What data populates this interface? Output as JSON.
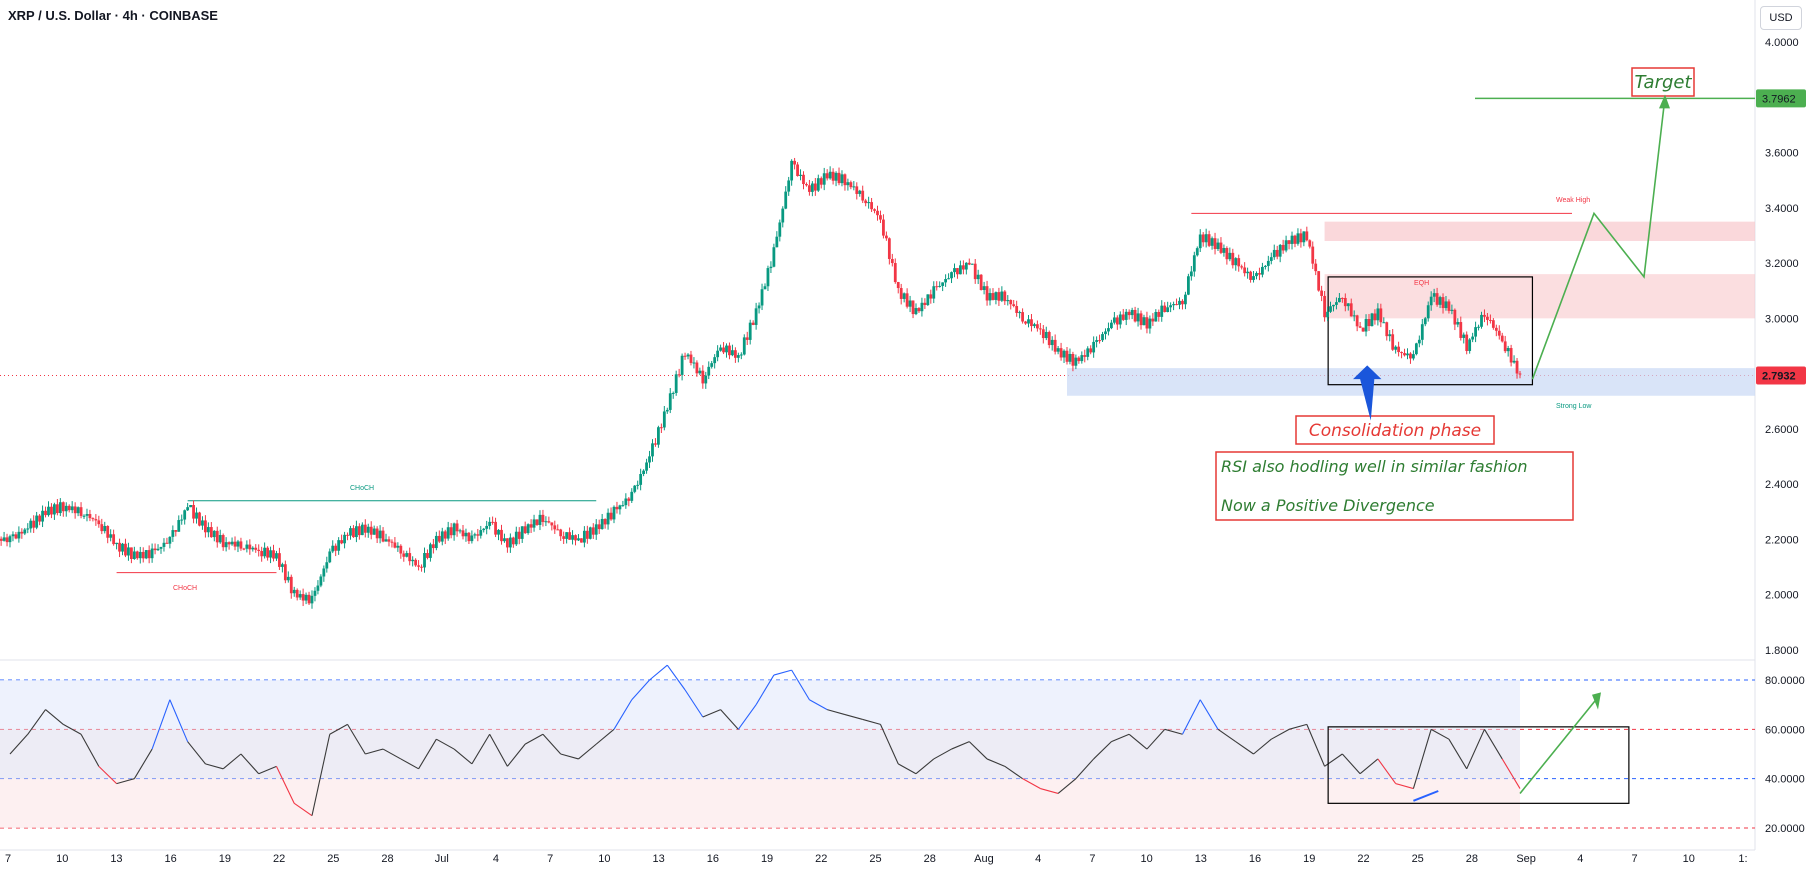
{
  "header": {
    "title": "XRP / U.S. Dollar · 4h · COINBASE"
  },
  "currency_button": "USD",
  "colors": {
    "up": "#089981",
    "down": "#f23645",
    "rsi_neutral": "#3a3a3a",
    "rsi_up": "#2962ff",
    "annotation_green": "#4caf50",
    "annotation_red": "#e53935"
  },
  "price_axis": {
    "ticks": [
      "4.0000",
      "3.8000",
      "3.6000",
      "3.4000",
      "3.2000",
      "3.0000",
      "2.8000",
      "2.6000",
      "2.4000",
      "2.2000",
      "2.0000",
      "1.8000"
    ],
    "current_price": "2.7932",
    "target_price": "3.7962"
  },
  "rsi_axis": {
    "ticks": [
      "80.0000",
      "60.0000",
      "40.0000",
      "20.0000"
    ]
  },
  "time_axis": {
    "labels": [
      "7",
      "10",
      "13",
      "16",
      "19",
      "22",
      "25",
      "28",
      "Jul",
      "4",
      "7",
      "10",
      "13",
      "16",
      "19",
      "22",
      "25",
      "28",
      "Aug",
      "4",
      "7",
      "10",
      "13",
      "16",
      "19",
      "22",
      "25",
      "28",
      "Sep",
      "4",
      "7",
      "10",
      "1:"
    ]
  },
  "annotations": {
    "target": "Target",
    "consolidation": "Consolidation phase",
    "rsi_note_1": "RSI also hodling well in similar fashion",
    "rsi_note_2": "Now a Positive Divergence",
    "weak_high": "Weak High",
    "strong_low": "Strong Low",
    "choch_big": "CHoCH",
    "choch_low": "CHoCH",
    "eqh": "EQH"
  },
  "chart_data": [
    {
      "type": "candlestick",
      "title": "XRP / U.S. Dollar · 4h · COINBASE",
      "ylim": [
        1.8,
        4.0
      ],
      "x_range_days": [
        0,
        85
      ],
      "current_price": 2.7932,
      "target": 3.7962,
      "series": [
        {
          "name": "XRP/USD",
          "points": [
            [
              0,
              2.2
            ],
            [
              1,
              2.24
            ],
            [
              2,
              2.3
            ],
            [
              3,
              2.32
            ],
            [
              4,
              2.3
            ],
            [
              5,
              2.26
            ],
            [
              6,
              2.18
            ],
            [
              7,
              2.14
            ],
            [
              8,
              2.15
            ],
            [
              9,
              2.2
            ],
            [
              10,
              2.32
            ],
            [
              11,
              2.24
            ],
            [
              12,
              2.19
            ],
            [
              13,
              2.18
            ],
            [
              14,
              2.16
            ],
            [
              15,
              2.14
            ],
            [
              16,
              2.0
            ],
            [
              17,
              1.98
            ],
            [
              18,
              2.15
            ],
            [
              19,
              2.22
            ],
            [
              20,
              2.24
            ],
            [
              21,
              2.21
            ],
            [
              22,
              2.16
            ],
            [
              23,
              2.1
            ],
            [
              24,
              2.2
            ],
            [
              25,
              2.24
            ],
            [
              26,
              2.2
            ],
            [
              27,
              2.26
            ],
            [
              28,
              2.18
            ],
            [
              29,
              2.24
            ],
            [
              30,
              2.28
            ],
            [
              31,
              2.22
            ],
            [
              32,
              2.2
            ],
            [
              33,
              2.24
            ],
            [
              34,
              2.3
            ],
            [
              35,
              2.36
            ],
            [
              36,
              2.5
            ],
            [
              37,
              2.68
            ],
            [
              38,
              2.88
            ],
            [
              39,
              2.78
            ],
            [
              40,
              2.9
            ],
            [
              41,
              2.86
            ],
            [
              42,
              3.02
            ],
            [
              43,
              3.24
            ],
            [
              44,
              3.56
            ],
            [
              45,
              3.46
            ],
            [
              46,
              3.52
            ],
            [
              47,
              3.5
            ],
            [
              48,
              3.44
            ],
            [
              49,
              3.36
            ],
            [
              50,
              3.1
            ],
            [
              51,
              3.02
            ],
            [
              52,
              3.1
            ],
            [
              53,
              3.16
            ],
            [
              54,
              3.2
            ],
            [
              55,
              3.08
            ],
            [
              56,
              3.08
            ],
            [
              57,
              3.0
            ],
            [
              58,
              2.96
            ],
            [
              59,
              2.88
            ],
            [
              60,
              2.84
            ],
            [
              61,
              2.9
            ],
            [
              62,
              2.98
            ],
            [
              63,
              3.02
            ],
            [
              64,
              2.98
            ],
            [
              65,
              3.04
            ],
            [
              66,
              3.06
            ],
            [
              67,
              3.3
            ],
            [
              68,
              3.26
            ],
            [
              69,
              3.2
            ],
            [
              70,
              3.14
            ],
            [
              71,
              3.22
            ],
            [
              72,
              3.28
            ],
            [
              73,
              3.3
            ],
            [
              74,
              3.02
            ],
            [
              75,
              3.08
            ],
            [
              76,
              2.96
            ],
            [
              77,
              3.02
            ],
            [
              78,
              2.88
            ],
            [
              79,
              2.86
            ],
            [
              80,
              3.08
            ],
            [
              81,
              3.04
            ],
            [
              82,
              2.9
            ],
            [
              83,
              3.02
            ],
            [
              84,
              2.92
            ],
            [
              85,
              2.79
            ]
          ]
        }
      ]
    },
    {
      "type": "line",
      "title": "RSI",
      "ylim": [
        18,
        88
      ],
      "levels": [
        80,
        60,
        40,
        20
      ],
      "series": [
        {
          "name": "RSI",
          "points": [
            [
              0,
              50
            ],
            [
              1,
              58
            ],
            [
              2,
              68
            ],
            [
              3,
              62
            ],
            [
              4,
              58
            ],
            [
              5,
              45
            ],
            [
              6,
              38
            ],
            [
              7,
              40
            ],
            [
              8,
              52
            ],
            [
              9,
              72
            ],
            [
              10,
              55
            ],
            [
              11,
              46
            ],
            [
              12,
              44
            ],
            [
              13,
              50
            ],
            [
              14,
              42
            ],
            [
              15,
              45
            ],
            [
              16,
              30
            ],
            [
              17,
              25
            ],
            [
              18,
              58
            ],
            [
              19,
              62
            ],
            [
              20,
              50
            ],
            [
              21,
              52
            ],
            [
              22,
              48
            ],
            [
              23,
              44
            ],
            [
              24,
              56
            ],
            [
              25,
              52
            ],
            [
              26,
              46
            ],
            [
              27,
              58
            ],
            [
              28,
              45
            ],
            [
              29,
              54
            ],
            [
              30,
              58
            ],
            [
              31,
              50
            ],
            [
              32,
              48
            ],
            [
              33,
              54
            ],
            [
              34,
              60
            ],
            [
              35,
              72
            ],
            [
              36,
              80
            ],
            [
              37,
              86
            ],
            [
              38,
              76
            ],
            [
              39,
              65
            ],
            [
              40,
              68
            ],
            [
              41,
              60
            ],
            [
              42,
              70
            ],
            [
              43,
              82
            ],
            [
              44,
              84
            ],
            [
              45,
              72
            ],
            [
              46,
              68
            ],
            [
              47,
              66
            ],
            [
              48,
              64
            ],
            [
              49,
              62
            ],
            [
              50,
              46
            ],
            [
              51,
              42
            ],
            [
              52,
              48
            ],
            [
              53,
              52
            ],
            [
              54,
              55
            ],
            [
              55,
              48
            ],
            [
              56,
              45
            ],
            [
              57,
              40
            ],
            [
              58,
              36
            ],
            [
              59,
              34
            ],
            [
              60,
              40
            ],
            [
              61,
              48
            ],
            [
              62,
              55
            ],
            [
              63,
              58
            ],
            [
              64,
              52
            ],
            [
              65,
              60
            ],
            [
              66,
              58
            ],
            [
              67,
              72
            ],
            [
              68,
              60
            ],
            [
              69,
              55
            ],
            [
              70,
              50
            ],
            [
              71,
              56
            ],
            [
              72,
              60
            ],
            [
              73,
              62
            ],
            [
              74,
              45
            ],
            [
              75,
              50
            ],
            [
              76,
              42
            ],
            [
              77,
              48
            ],
            [
              78,
              38
            ],
            [
              79,
              36
            ],
            [
              80,
              60
            ],
            [
              81,
              56
            ],
            [
              82,
              44
            ],
            [
              83,
              60
            ],
            [
              84,
              48
            ],
            [
              85,
              36
            ]
          ]
        }
      ]
    }
  ]
}
